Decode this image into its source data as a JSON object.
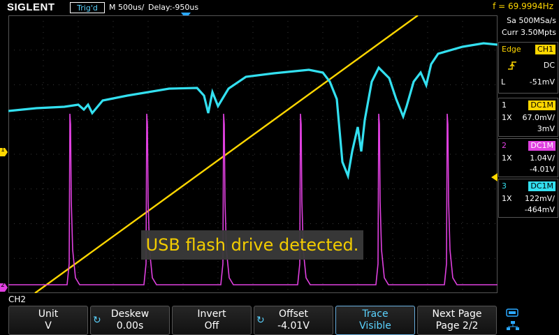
{
  "header": {
    "brand": "SIGLENT",
    "trigger_state": "Trig'd",
    "timebase": "M 500us/",
    "delay": "Delay:-950us",
    "frequency": "f = 69.9994Hz"
  },
  "acquisition": {
    "sample_rate": "Sa 500MSa/s",
    "memory": "Curr 3.50Mpts"
  },
  "trigger": {
    "type": "Edge",
    "source": "CH1",
    "coupling": "DC",
    "level_label": "L",
    "level": "-51mV",
    "slope_icon": "rising-edge-icon"
  },
  "channels": [
    {
      "number": "1",
      "coupling": "DC1M",
      "probe": "1X",
      "scale": "67.0mV/",
      "offset": "3mV",
      "color": "#ffd700"
    },
    {
      "number": "2",
      "coupling": "DC1M",
      "probe": "1X",
      "scale": "1.04V/",
      "offset": "-4.01V",
      "color": "#e040e0"
    },
    {
      "number": "3",
      "coupling": "DC1M",
      "probe": "1X",
      "scale": "122mV/",
      "offset": "-464mV",
      "color": "#33e0f0"
    }
  ],
  "markers": {
    "ch1": "1",
    "ch2": "2"
  },
  "message": "USB flash drive detected.",
  "menu": {
    "title": "CH2",
    "softkeys": [
      {
        "label": "Unit",
        "value": "V",
        "knob": false
      },
      {
        "label": "Deskew",
        "value": "0.00s",
        "knob": true
      },
      {
        "label": "Invert",
        "value": "Off",
        "knob": false
      },
      {
        "label": "Offset",
        "value": "-4.01V",
        "knob": true
      },
      {
        "label": "Trace",
        "value": "Visible",
        "knob": false,
        "active": true
      },
      {
        "label": "Next Page",
        "value": "Page 2/2",
        "knob": false
      }
    ]
  },
  "status_icons": [
    "usb-icon",
    "network-icon"
  ]
}
